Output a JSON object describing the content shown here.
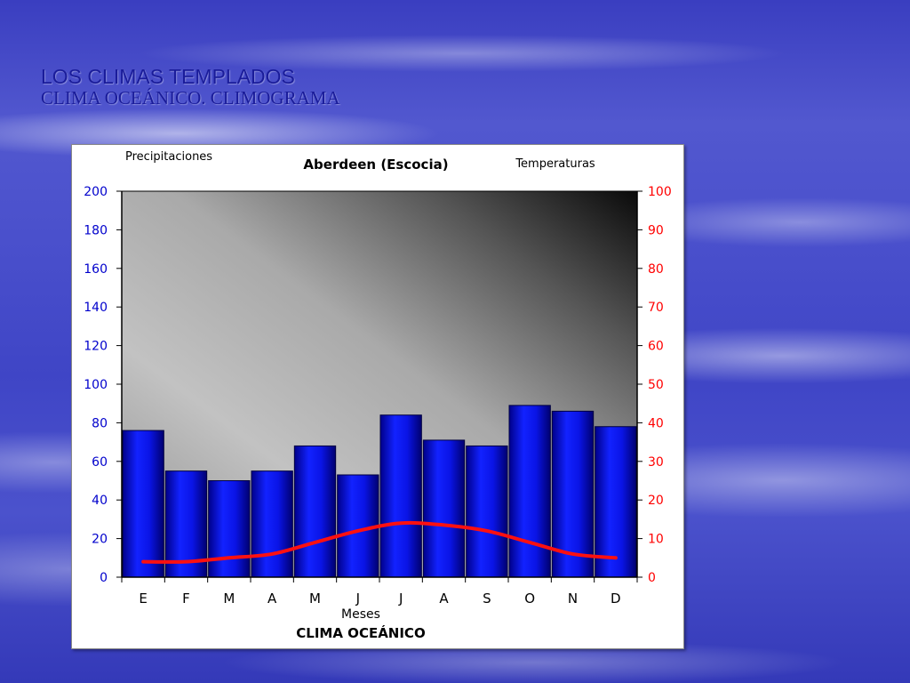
{
  "slide": {
    "title": "LOS CLIMAS TEMPLADOS",
    "subtitle": "CLIMA OCEÁNICO. CLIMOGRAMA"
  },
  "chart_data": {
    "type": "bar",
    "title": "Aberdeen (Escocia)",
    "subtitle": "CLIMA OCEÁNICO",
    "xlabel": "Meses",
    "ylabel": "Precipitaciones",
    "y2label": "Temperaturas",
    "categories": [
      "E",
      "F",
      "M",
      "A",
      "M",
      "J",
      "J",
      "A",
      "S",
      "O",
      "N",
      "D"
    ],
    "ylim": [
      0,
      200
    ],
    "y_ticks": [
      "0",
      "20",
      "40",
      "60",
      "80",
      "100",
      "120",
      "140",
      "160",
      "180",
      "200"
    ],
    "y2lim": [
      0,
      100
    ],
    "y2_ticks": [
      "0",
      "10",
      "20",
      "30",
      "40",
      "50",
      "60",
      "70",
      "80",
      "90",
      "100"
    ],
    "series": [
      {
        "kind": "bar",
        "axis": "left",
        "color": "#0a14e6",
        "values": [
          76,
          55,
          50,
          55,
          68,
          53,
          84,
          71,
          68,
          89,
          86,
          78
        ]
      },
      {
        "kind": "line",
        "axis": "right",
        "color": "#ff1010",
        "values": [
          4,
          4,
          5,
          6,
          9,
          12,
          14,
          13.5,
          12,
          9,
          6,
          5
        ]
      }
    ],
    "grid": false,
    "plot_background": "gradient gray to black (top-right)",
    "left_axis_color": "#0000cc",
    "right_axis_color": "#ff0000"
  }
}
